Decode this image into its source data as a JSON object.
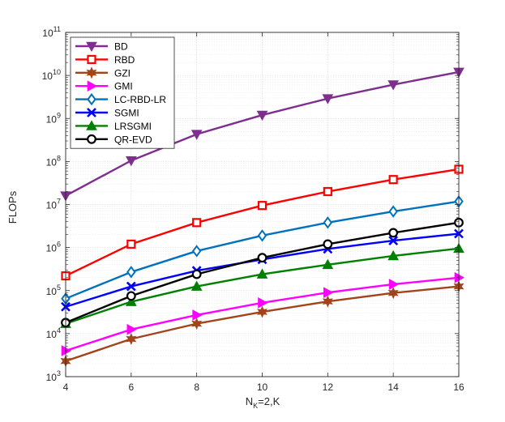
{
  "chart_data": {
    "type": "line",
    "yscale": "log",
    "xlabel": "N",
    "xlabel_sub": "K",
    "xlabel_suffix": "=2,K",
    "ylabel": "FLOPs",
    "xlim": [
      4,
      16
    ],
    "ylim_exponents": [
      3,
      11
    ],
    "x_ticks": [
      "4",
      "6",
      "8",
      "10",
      "12",
      "14",
      "16"
    ],
    "x_tick_values": [
      4,
      6,
      8,
      10,
      12,
      14,
      16
    ],
    "y_tick_base": "10",
    "y_tick_exponents": [
      "3",
      "4",
      "5",
      "6",
      "7",
      "8",
      "9",
      "10",
      "11"
    ],
    "grid": true,
    "legend_position": "top-left",
    "x": [
      4,
      6,
      8,
      10,
      12,
      14,
      16
    ],
    "series": [
      {
        "name": "BD",
        "color": "#7e2f8e",
        "marker": "triangle-down",
        "values": [
          16000000,
          105000000,
          430000000,
          1200000000,
          2900000000,
          6100000000,
          12000000000
        ]
      },
      {
        "name": "RBD",
        "color": "#ff0000",
        "marker": "square",
        "values": [
          220000,
          1200000,
          3800000,
          9500000,
          20000000,
          38000000,
          66000000
        ]
      },
      {
        "name": "GZI",
        "color": "#a2441b",
        "marker": "hexagram",
        "values": [
          2300,
          7500,
          17000,
          32000,
          56000,
          88000,
          125000
        ]
      },
      {
        "name": "GMI",
        "color": "#ff00ff",
        "marker": "triangle-right",
        "values": [
          4000,
          12500,
          27000,
          52000,
          90000,
          140000,
          200000
        ]
      },
      {
        "name": "LC-RBD-LR",
        "color": "#0072bd",
        "marker": "diamond",
        "values": [
          65000,
          270000,
          830000,
          1900000,
          3800000,
          6900000,
          11800000
        ]
      },
      {
        "name": "SGMI",
        "color": "#0000ff",
        "marker": "x",
        "values": [
          42000,
          125000,
          290000,
          530000,
          930000,
          1450000,
          2100000
        ]
      },
      {
        "name": "LRSGMI",
        "color": "#008000",
        "marker": "triangle-up",
        "values": [
          17000,
          55000,
          125000,
          240000,
          400000,
          640000,
          950000
        ]
      },
      {
        "name": "QR-EVD",
        "color": "#000000",
        "marker": "circle",
        "values": [
          18000,
          75000,
          240000,
          580000,
          1200000,
          2200000,
          3800000
        ]
      }
    ]
  }
}
